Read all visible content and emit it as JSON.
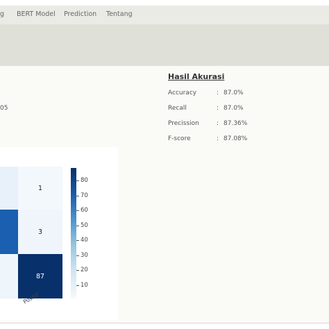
{
  "nav": {
    "items": [
      "g",
      "BERT Model",
      "Prediction",
      "Tentang"
    ]
  },
  "left_partial": "05",
  "results": {
    "title": "Hasil Akurasi",
    "metrics": [
      {
        "label": "Accuracy",
        "colon": ":",
        "value": "87.0%"
      },
      {
        "label": "Recall",
        "colon": ":",
        "value": "87.0%"
      },
      {
        "label": "Precission",
        "colon": ":",
        "value": "87.36%"
      },
      {
        "label": "F-score",
        "colon": ":",
        "value": "87.08%"
      }
    ]
  },
  "chart_data": {
    "type": "heatmap",
    "visible_column_values": [
      "1",
      "3",
      "87"
    ],
    "x_tick_labels": [
      "Positif"
    ],
    "colorbar_ticks": [
      "80",
      "70",
      "60",
      "50",
      "40",
      "30",
      "20",
      "10"
    ],
    "colorbar_range": [
      0,
      87
    ],
    "colormap": "Blues"
  }
}
